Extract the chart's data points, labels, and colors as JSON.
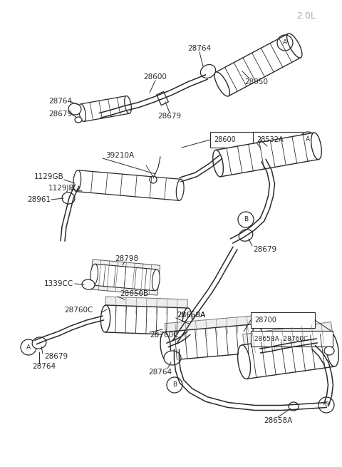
{
  "title": "2.0L",
  "bg_color": "#ffffff",
  "lc": "#2a2a2a",
  "tc": "#2a2a2a",
  "gc": "#888888",
  "figsize": [
    4.8,
    6.55
  ],
  "dpi": 100,
  "xlim": [
    0,
    480
  ],
  "ylim": [
    0,
    655
  ]
}
